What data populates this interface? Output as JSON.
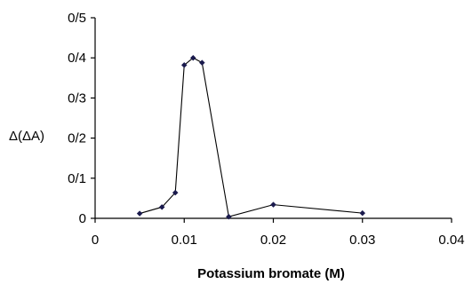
{
  "chart_data": {
    "type": "scatter",
    "title": "",
    "xlabel": "Potassium bromate (M)",
    "ylabel": "Δ(ΔA)",
    "xlim": [
      0,
      0.04
    ],
    "ylim": [
      0,
      0.5
    ],
    "x_ticks": [
      "0",
      "0.01",
      "0.02",
      "0.03",
      "0.04"
    ],
    "y_ticks": [
      "0",
      "0/1",
      "0/2",
      "0/3",
      "0/4",
      "0/5"
    ],
    "grid": false,
    "legend": "none",
    "line_color": "#000000",
    "marker_color": "#1a1a4d",
    "series": [
      {
        "x": [
          0.005,
          0.0075,
          0.009,
          0.01,
          0.011,
          0.012,
          0.015,
          0.02,
          0.03
        ],
        "y": [
          0.012,
          0.028,
          0.064,
          0.382,
          0.4,
          0.388,
          0.004,
          0.034,
          0.013
        ]
      }
    ]
  }
}
